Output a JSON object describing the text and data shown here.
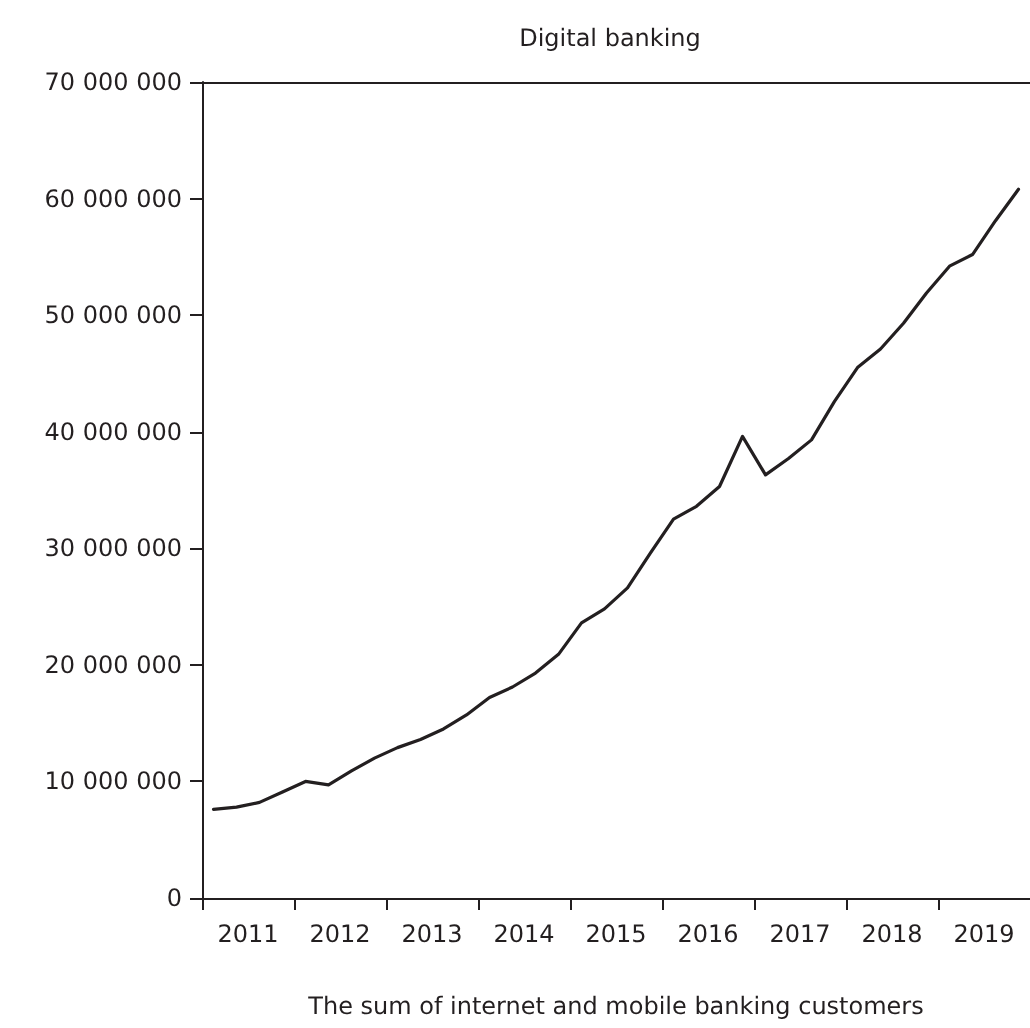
{
  "chart_data": {
    "type": "line",
    "title": "Digital banking",
    "xlabel": "The sum of internet and mobile banking customers",
    "x": [
      2011.125,
      2011.375,
      2011.625,
      2011.875,
      2012.125,
      2012.375,
      2012.625,
      2012.875,
      2013.125,
      2013.375,
      2013.625,
      2013.875,
      2014.125,
      2014.375,
      2014.625,
      2014.875,
      2015.125,
      2015.375,
      2015.625,
      2015.875,
      2016.125,
      2016.375,
      2016.625,
      2016.875,
      2017.125,
      2017.375,
      2017.625,
      2017.875,
      2018.125,
      2018.375,
      2018.625,
      2018.875,
      2019.125,
      2019.375,
      2019.625,
      2019.875
    ],
    "series": [
      {
        "color": "#231f20",
        "values": [
          7600000,
          7800000,
          8200000,
          9100000,
          10000000,
          9700000,
          10900000,
          12000000,
          12900000,
          13600000,
          14500000,
          15700000,
          17200000,
          18100000,
          19300000,
          20900000,
          23600000,
          24800000,
          26600000,
          29600000,
          32500000,
          33600000,
          35300000,
          39600000,
          36300000,
          37700000,
          39300000,
          42600000,
          45500000,
          47100000,
          49300000,
          51900000,
          54200000,
          55200000,
          58100000,
          60800000
        ]
      }
    ],
    "xlim": [
      2011,
      2020
    ],
    "xticks": [
      {
        "value": 2011,
        "label": null
      },
      {
        "value": 2011.5,
        "label": "2011"
      },
      {
        "value": 2012,
        "label": null
      },
      {
        "value": 2012.5,
        "label": "2012"
      },
      {
        "value": 2013,
        "label": null
      },
      {
        "value": 2013.5,
        "label": "2013"
      },
      {
        "value": 2014,
        "label": null
      },
      {
        "value": 2014.5,
        "label": "2014"
      },
      {
        "value": 2015,
        "label": null
      },
      {
        "value": 2015.5,
        "label": "2015"
      },
      {
        "value": 2016,
        "label": null
      },
      {
        "value": 2016.5,
        "label": "2016"
      },
      {
        "value": 2017,
        "label": null
      },
      {
        "value": 2017.5,
        "label": "2017"
      },
      {
        "value": 2018,
        "label": null
      },
      {
        "value": 2018.5,
        "label": "2018"
      },
      {
        "value": 2019,
        "label": null
      },
      {
        "value": 2019.5,
        "label": "2019"
      }
    ],
    "ylim": [
      0,
      70000000
    ],
    "yticks": [
      {
        "value": 0,
        "label": "0"
      },
      {
        "value": 10000000,
        "label": "10 000 000"
      },
      {
        "value": 20000000,
        "label": "20 000 000"
      },
      {
        "value": 30000000,
        "label": "30 000 000"
      },
      {
        "value": 40000000,
        "label": "40 000 000"
      },
      {
        "value": 50000000,
        "label": "50 000 000"
      },
      {
        "value": 60000000,
        "label": "60 000 000"
      },
      {
        "value": 70000000,
        "label": "70 000 000"
      }
    ],
    "grid": false,
    "marker": "none",
    "line_style": "solid"
  }
}
